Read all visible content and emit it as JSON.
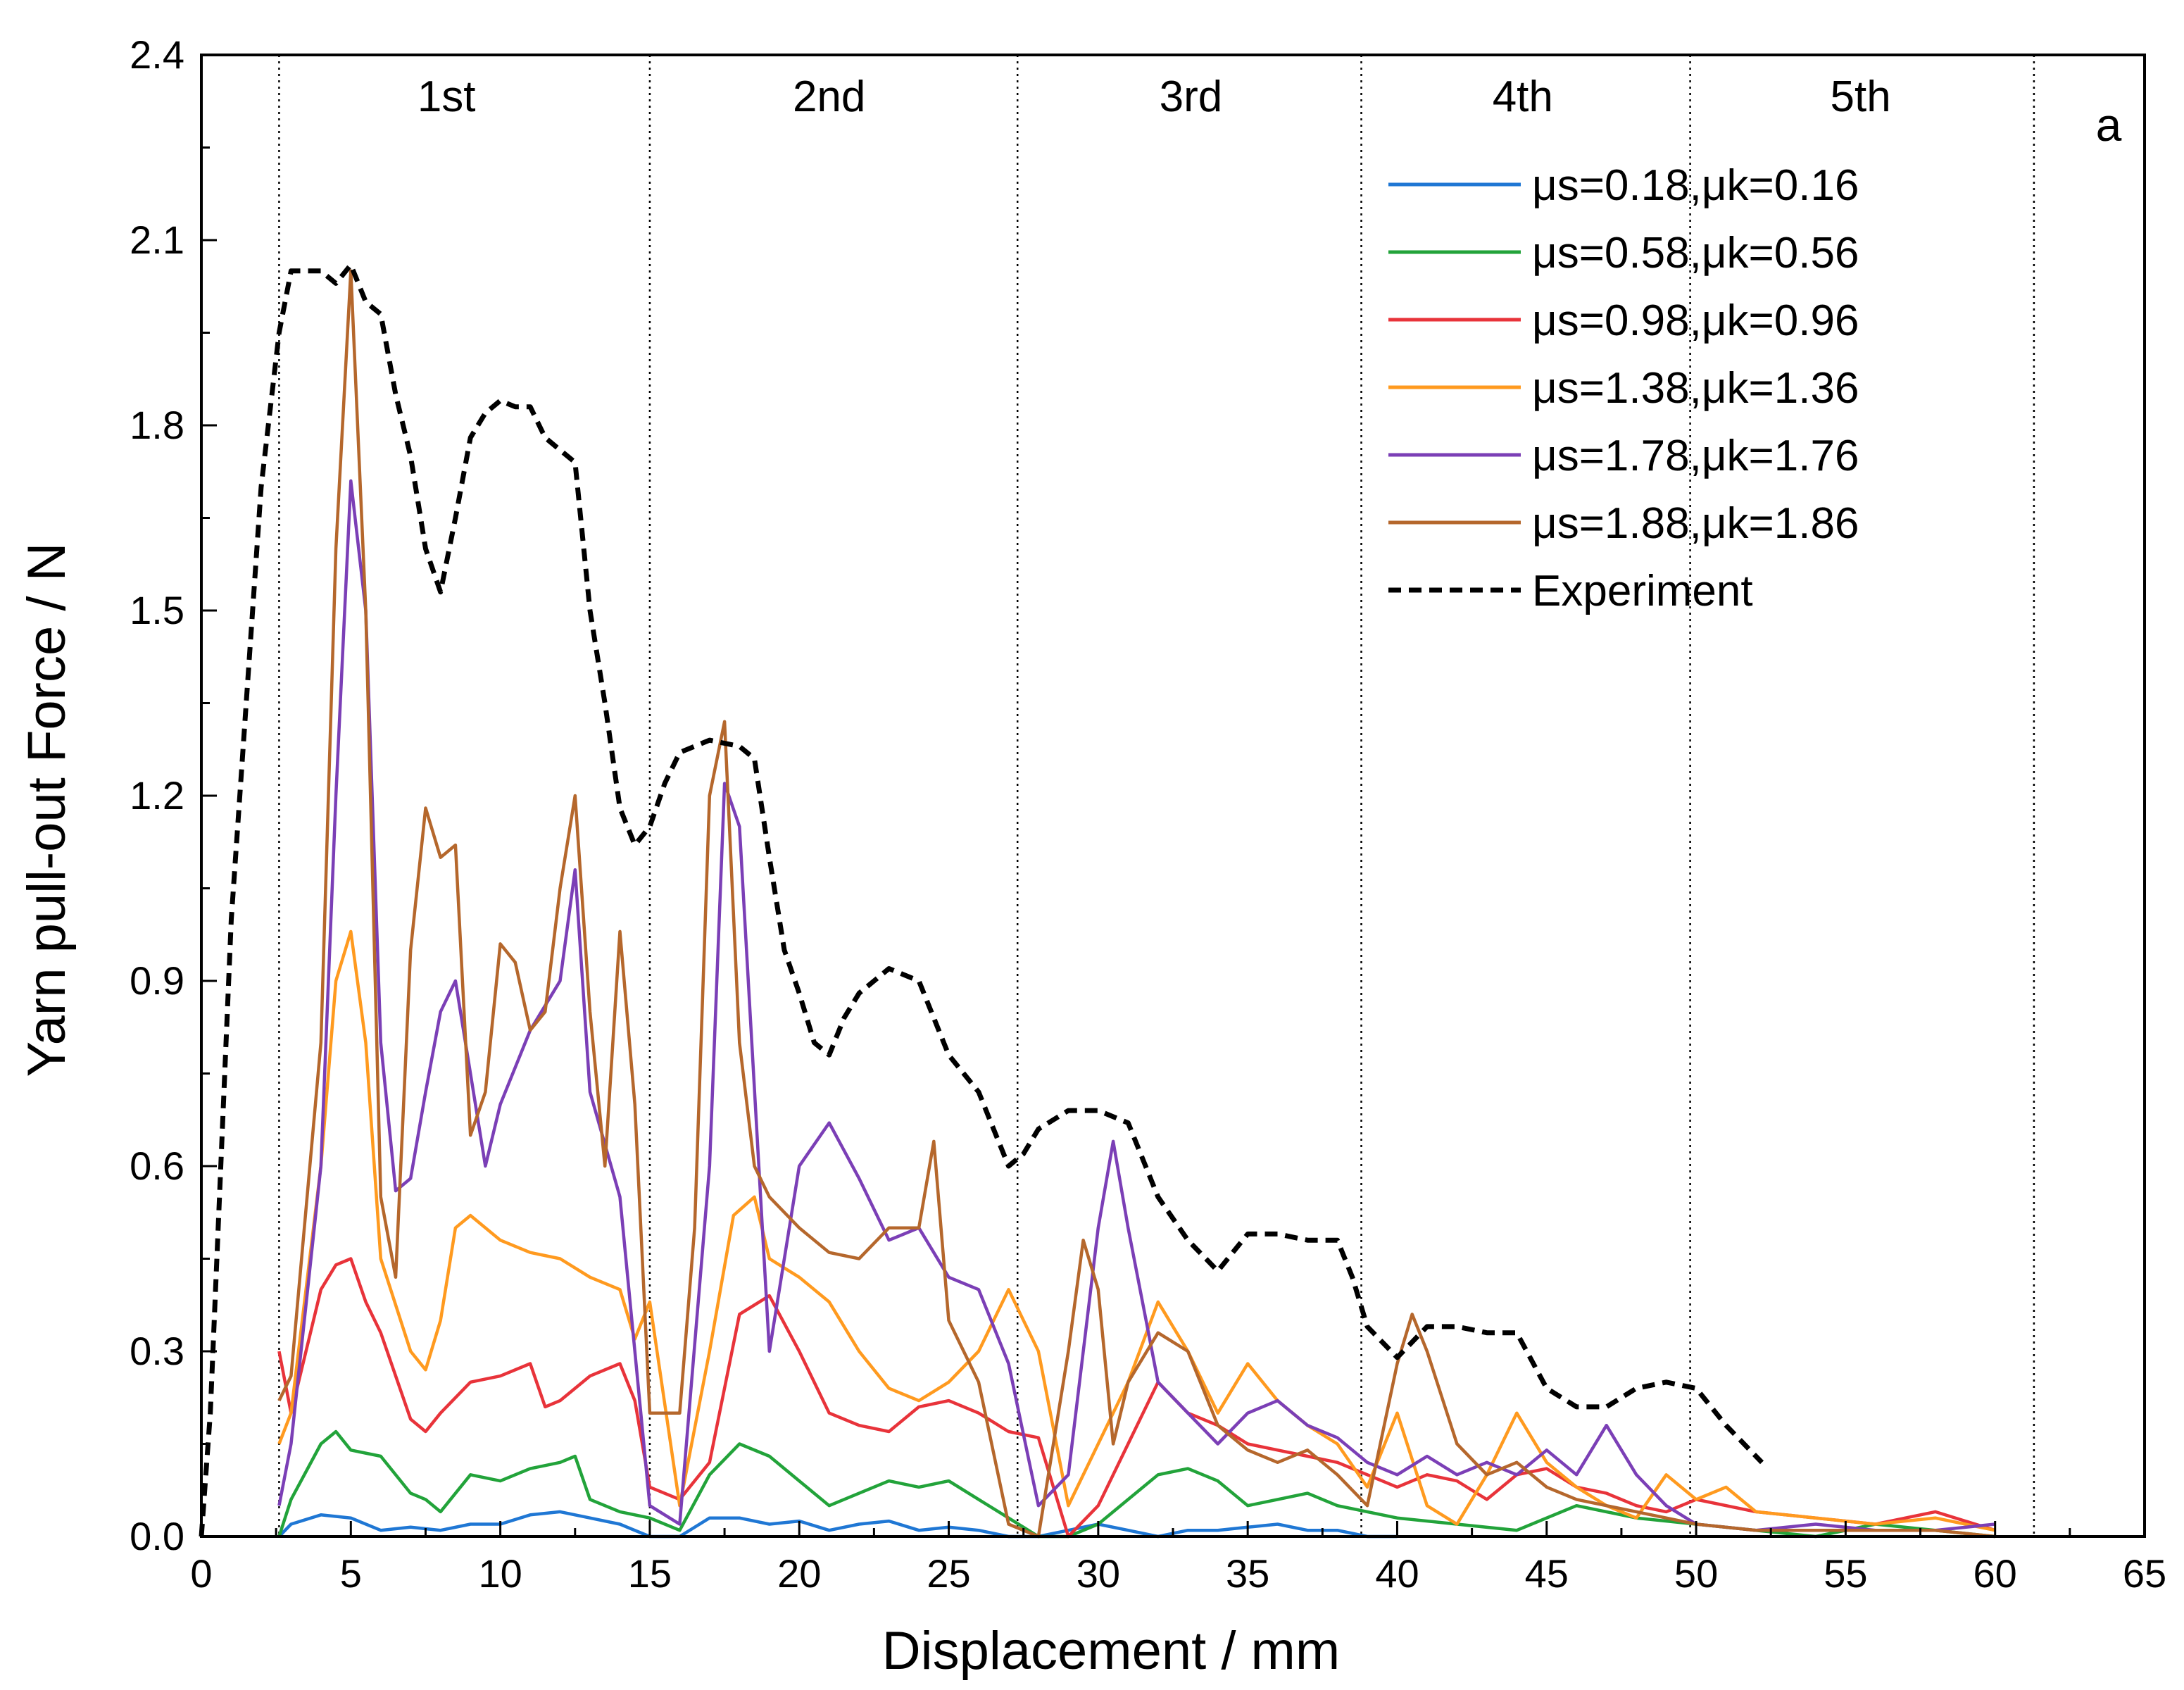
{
  "chart_data": {
    "type": "line",
    "panel_label": "a",
    "xlabel": "Displacement / mm",
    "ylabel": "Yarn pull-out Force / N",
    "xlim": [
      0,
      65
    ],
    "ylim": [
      0,
      2.4
    ],
    "x_ticks": [
      "0",
      "5",
      "10",
      "15",
      "20",
      "25",
      "30",
      "35",
      "40",
      "45",
      "50",
      "55",
      "60",
      "65"
    ],
    "y_ticks": [
      "0.0",
      "0.3",
      "0.6",
      "0.9",
      "1.2",
      "1.5",
      "1.8",
      "2.1",
      "2.4"
    ],
    "stage_dividers": [
      2.6,
      15.0,
      27.3,
      38.8,
      49.8,
      61.3
    ],
    "stages": [
      {
        "label": "1st",
        "x": 8.2
      },
      {
        "label": "2nd",
        "x": 21.0
      },
      {
        "label": "3rd",
        "x": 33.1
      },
      {
        "label": "4th",
        "x": 44.2
      },
      {
        "label": "5th",
        "x": 55.5
      }
    ],
    "series": [
      {
        "name": "μs=0.18,μk=0.16",
        "color": "#1f77d4",
        "dash": false,
        "x": [
          2.6,
          3,
          4,
          5,
          6,
          7,
          8,
          9,
          10,
          11,
          12,
          13,
          14,
          15,
          16,
          17,
          18,
          19,
          20,
          21,
          22,
          23,
          24,
          25,
          26,
          27,
          28,
          29,
          30,
          31,
          32,
          33,
          34,
          35,
          36,
          37,
          38,
          39,
          40
        ],
        "y": [
          0,
          0.02,
          0.035,
          0.03,
          0.01,
          0.015,
          0.01,
          0.02,
          0.02,
          0.035,
          0.04,
          0.03,
          0.02,
          0,
          0,
          0.03,
          0.03,
          0.02,
          0.025,
          0.01,
          0.02,
          0.025,
          0.01,
          0.015,
          0.01,
          0,
          0,
          0.01,
          0.02,
          0.01,
          0,
          0.01,
          0.01,
          0.015,
          0.02,
          0.01,
          0.01,
          0,
          0
        ]
      },
      {
        "name": "μs=0.58,μk=0.56",
        "color": "#22a33a",
        "dash": false,
        "x": [
          2.6,
          3,
          4,
          4.5,
          5,
          6,
          7,
          7.5,
          8,
          9,
          10,
          11,
          12,
          12.5,
          13,
          14,
          15,
          16,
          17,
          18,
          19,
          20,
          21,
          22,
          23,
          24,
          25,
          26,
          27,
          28,
          29,
          30,
          31,
          32,
          33,
          34,
          35,
          36,
          37,
          38,
          39,
          40,
          42,
          44,
          46,
          48,
          50,
          52,
          54,
          56,
          58,
          60
        ],
        "y": [
          0,
          0.06,
          0.15,
          0.17,
          0.14,
          0.13,
          0.07,
          0.06,
          0.04,
          0.1,
          0.09,
          0.11,
          0.12,
          0.13,
          0.06,
          0.04,
          0.03,
          0.01,
          0.1,
          0.15,
          0.13,
          0.09,
          0.05,
          0.07,
          0.09,
          0.08,
          0.09,
          0.06,
          0.03,
          0,
          0,
          0.02,
          0.06,
          0.1,
          0.11,
          0.09,
          0.05,
          0.06,
          0.07,
          0.05,
          0.04,
          0.03,
          0.02,
          0.01,
          0.05,
          0.03,
          0.02,
          0.01,
          0,
          0.02,
          0.01,
          0
        ]
      },
      {
        "name": "μs=0.98,μk=0.96",
        "color": "#e8333a",
        "dash": false,
        "x": [
          2.6,
          3,
          4,
          4.5,
          5,
          5.5,
          6,
          7,
          7.5,
          8,
          9,
          10,
          11,
          11.5,
          12,
          13,
          14,
          14.5,
          15,
          16,
          17,
          18,
          19,
          20,
          21,
          22,
          23,
          24,
          25,
          26,
          27,
          28,
          29,
          30,
          31,
          32,
          33,
          34,
          35,
          36,
          37,
          38,
          39,
          40,
          41,
          42,
          43,
          44,
          45,
          46,
          47,
          48,
          49,
          50,
          52,
          54,
          56,
          58,
          60
        ],
        "y": [
          0.3,
          0.2,
          0.4,
          0.44,
          0.45,
          0.38,
          0.33,
          0.19,
          0.17,
          0.2,
          0.25,
          0.26,
          0.28,
          0.21,
          0.22,
          0.26,
          0.28,
          0.22,
          0.08,
          0.06,
          0.12,
          0.36,
          0.39,
          0.3,
          0.2,
          0.18,
          0.17,
          0.21,
          0.22,
          0.2,
          0.17,
          0.16,
          0,
          0.05,
          0.15,
          0.25,
          0.2,
          0.18,
          0.15,
          0.14,
          0.13,
          0.12,
          0.1,
          0.08,
          0.1,
          0.09,
          0.06,
          0.1,
          0.11,
          0.08,
          0.07,
          0.05,
          0.04,
          0.06,
          0.04,
          0.03,
          0.02,
          0.04,
          0.01
        ]
      },
      {
        "name": "μs=1.38,μk=1.36",
        "color": "#ff9a1f",
        "dash": false,
        "x": [
          2.6,
          3,
          4,
          4.5,
          5,
          5.5,
          6,
          7,
          7.5,
          8,
          8.5,
          9,
          10,
          11,
          12,
          13,
          14,
          14.5,
          15,
          16,
          17,
          17.8,
          18.5,
          19,
          20,
          21,
          22,
          23,
          24,
          25,
          26,
          27,
          28,
          29,
          30,
          31,
          32,
          33,
          34,
          35,
          36,
          37,
          38,
          39,
          40,
          41,
          42,
          43,
          44,
          45,
          46,
          47,
          48,
          49,
          50,
          51,
          52,
          54,
          56,
          58,
          60
        ],
        "y": [
          0.15,
          0.2,
          0.6,
          0.9,
          0.98,
          0.8,
          0.45,
          0.3,
          0.27,
          0.35,
          0.5,
          0.52,
          0.48,
          0.46,
          0.45,
          0.42,
          0.4,
          0.32,
          0.38,
          0.05,
          0.3,
          0.52,
          0.55,
          0.45,
          0.42,
          0.38,
          0.3,
          0.24,
          0.22,
          0.25,
          0.3,
          0.4,
          0.3,
          0.05,
          0.15,
          0.25,
          0.38,
          0.3,
          0.2,
          0.28,
          0.22,
          0.18,
          0.15,
          0.08,
          0.2,
          0.05,
          0.02,
          0.1,
          0.2,
          0.12,
          0.08,
          0.05,
          0.03,
          0.1,
          0.06,
          0.08,
          0.04,
          0.03,
          0.02,
          0.03,
          0.01
        ]
      },
      {
        "name": "μs=1.78,μk=1.76",
        "color": "#7b3fb6",
        "dash": false,
        "x": [
          2.6,
          3,
          4,
          4.5,
          5,
          5.5,
          6,
          6.5,
          7,
          7.5,
          8,
          8.5,
          9,
          9.5,
          10,
          11,
          12,
          12.5,
          13,
          14,
          14.5,
          15,
          16,
          17,
          17.5,
          18,
          19,
          20,
          21,
          22,
          23,
          24,
          25,
          26,
          27,
          28,
          29,
          30,
          30.5,
          31,
          32,
          33,
          34,
          35,
          36,
          37,
          38,
          39,
          40,
          41,
          42,
          43,
          44,
          45,
          46,
          47,
          48,
          49,
          50,
          52,
          54,
          56,
          58,
          60
        ],
        "y": [
          0.05,
          0.15,
          0.6,
          1.2,
          1.71,
          1.5,
          0.8,
          0.56,
          0.58,
          0.72,
          0.85,
          0.9,
          0.75,
          0.6,
          0.7,
          0.82,
          0.9,
          1.08,
          0.72,
          0.55,
          0.3,
          0.05,
          0.02,
          0.6,
          1.22,
          1.15,
          0.3,
          0.6,
          0.67,
          0.58,
          0.48,
          0.5,
          0.42,
          0.4,
          0.28,
          0.05,
          0.1,
          0.5,
          0.64,
          0.5,
          0.25,
          0.2,
          0.15,
          0.2,
          0.22,
          0.18,
          0.16,
          0.12,
          0.1,
          0.13,
          0.1,
          0.12,
          0.1,
          0.14,
          0.1,
          0.18,
          0.1,
          0.05,
          0.02,
          0.01,
          0.02,
          0.01,
          0.01,
          0.02
        ]
      },
      {
        "name": "μs=1.88,μk=1.86",
        "color": "#b5672c",
        "dash": false,
        "x": [
          2.6,
          3,
          4,
          4.5,
          5,
          5.5,
          6,
          6.5,
          7,
          7.5,
          8,
          8.5,
          9,
          9.5,
          10,
          10.5,
          11,
          11.5,
          12,
          12.5,
          13,
          13.5,
          14,
          14.5,
          15,
          16,
          16.5,
          17,
          17.5,
          18,
          18.5,
          19,
          20,
          21,
          22,
          23,
          24,
          24.5,
          25,
          26,
          27,
          28,
          29,
          29.5,
          30,
          30.5,
          31,
          32,
          33,
          34,
          35,
          36,
          37,
          38,
          39,
          40,
          40.5,
          41,
          42,
          43,
          44,
          45,
          46,
          47,
          48,
          49,
          50,
          52,
          54,
          56,
          58,
          60
        ],
        "y": [
          0.22,
          0.26,
          0.8,
          1.6,
          2.05,
          1.5,
          0.55,
          0.42,
          0.95,
          1.18,
          1.1,
          1.12,
          0.65,
          0.72,
          0.96,
          0.93,
          0.82,
          0.85,
          1.05,
          1.2,
          0.85,
          0.6,
          0.98,
          0.7,
          0.2,
          0.2,
          0.5,
          1.2,
          1.32,
          0.8,
          0.6,
          0.55,
          0.5,
          0.46,
          0.45,
          0.5,
          0.5,
          0.64,
          0.35,
          0.25,
          0.02,
          0,
          0.3,
          0.48,
          0.4,
          0.15,
          0.25,
          0.33,
          0.3,
          0.18,
          0.14,
          0.12,
          0.14,
          0.1,
          0.05,
          0.28,
          0.36,
          0.3,
          0.15,
          0.1,
          0.12,
          0.08,
          0.06,
          0.05,
          0.04,
          0.03,
          0.02,
          0.01,
          0.01,
          0.01,
          0.01,
          0
        ]
      },
      {
        "name": "Experiment",
        "color": "#000000",
        "dash": true,
        "x": [
          0,
          0.3,
          1,
          2,
          2.6,
          3,
          4,
          4.5,
          5,
          5.5,
          6,
          6.5,
          7,
          7.5,
          8,
          8.5,
          9,
          9.5,
          10,
          10.5,
          11,
          11.5,
          12,
          12.5,
          13,
          13.5,
          14,
          14.5,
          15,
          15.5,
          16,
          17,
          18,
          18.5,
          19,
          19.5,
          20,
          20.5,
          21,
          21.5,
          22,
          23,
          24,
          25,
          26,
          26.5,
          27,
          27.5,
          28,
          29,
          30,
          31,
          32,
          33,
          34,
          35,
          36,
          37,
          38,
          38.5,
          39,
          40,
          41,
          42,
          43,
          44,
          45,
          46,
          47,
          48,
          49,
          50,
          51,
          52.2
        ],
        "y": [
          0,
          0.2,
          1.0,
          1.7,
          1.95,
          2.05,
          2.05,
          2.03,
          2.06,
          2.0,
          1.98,
          1.85,
          1.75,
          1.6,
          1.53,
          1.65,
          1.78,
          1.82,
          1.84,
          1.83,
          1.83,
          1.78,
          1.76,
          1.74,
          1.5,
          1.35,
          1.18,
          1.12,
          1.15,
          1.22,
          1.27,
          1.29,
          1.28,
          1.26,
          1.1,
          0.95,
          0.88,
          0.8,
          0.78,
          0.84,
          0.88,
          0.92,
          0.9,
          0.78,
          0.72,
          0.66,
          0.6,
          0.62,
          0.66,
          0.69,
          0.69,
          0.67,
          0.55,
          0.48,
          0.43,
          0.49,
          0.49,
          0.48,
          0.48,
          0.42,
          0.34,
          0.29,
          0.34,
          0.34,
          0.33,
          0.33,
          0.24,
          0.21,
          0.21,
          0.24,
          0.25,
          0.24,
          0.18,
          0.12
        ]
      }
    ]
  }
}
